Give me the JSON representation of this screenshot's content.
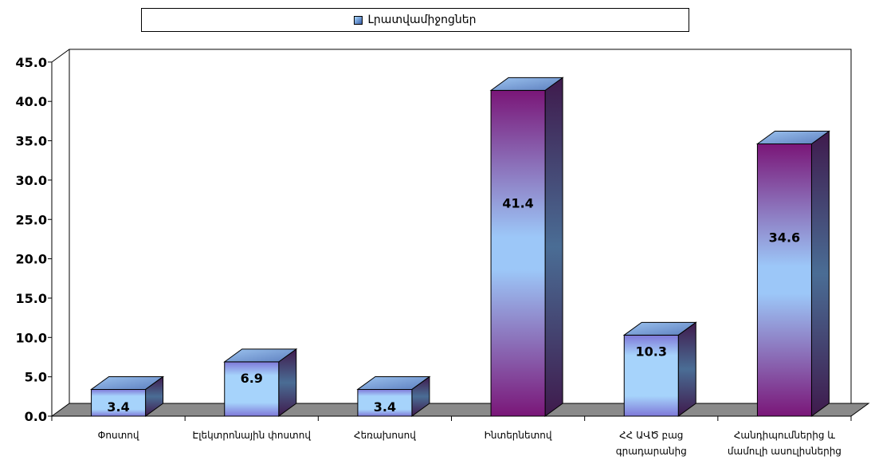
{
  "chart_data": {
    "type": "bar",
    "categories": [
      [
        "Փոստով"
      ],
      [
        "Էլեկտրոնային փոստով"
      ],
      [
        "Հեռախոսով"
      ],
      [
        "Ինտերնետով"
      ],
      [
        "ՀՀ ԱՎԾ բաց",
        "գրադարանից"
      ],
      [
        "Հանդիպումներից և",
        "մամուլի ասուլիսներից"
      ]
    ],
    "series": [
      {
        "name": "Լրատվամիջոցներ",
        "values": [
          3.4,
          6.9,
          3.4,
          41.4,
          10.3,
          34.6
        ],
        "labels": [
          "3.4",
          "6.9",
          "3.4",
          "41.4",
          "10.3",
          "34.6"
        ]
      }
    ],
    "ylim": [
      0,
      45
    ],
    "yticks": [
      "0.0",
      "5.0",
      "10.0",
      "15.0",
      "20.0",
      "25.0",
      "30.0",
      "35.0",
      "40.0",
      "45.0"
    ],
    "legend_position": "top",
    "style": "3d-column",
    "colors": {
      "light": "#9ecbfb",
      "dark": "#7a1c7a",
      "floor": "#8c8c8c",
      "top": "#7fa6dc"
    }
  }
}
